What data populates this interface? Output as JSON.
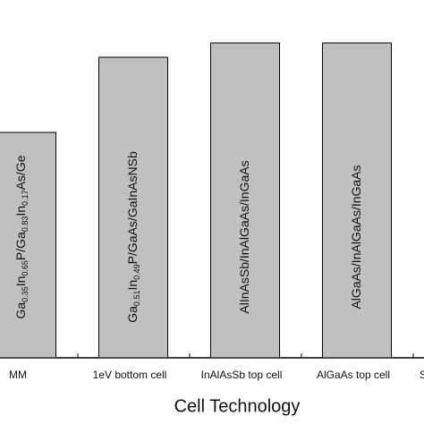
{
  "chart_data": {
    "type": "bar",
    "xlabel": "Cell Technology",
    "categories": [
      "MM",
      "1eV bottom cell",
      "InAlAsSb top cell",
      "AlGaAs top cell",
      "S"
    ],
    "values": [
      63,
      84,
      88,
      88,
      null
    ],
    "bar_labels": [
      "Ga0.35In0.65P/Ga0.83In0.17As/Ge",
      "Ga0.51In0.49P/GaAs/GaInAsNSb",
      "AlInAsSb/InAlGaAs/InGaAs",
      "AlGaAs/InAlGaAs/InGaAs",
      null
    ],
    "color": "#c0c0c0",
    "ylim": [
      0,
      100
    ]
  }
}
